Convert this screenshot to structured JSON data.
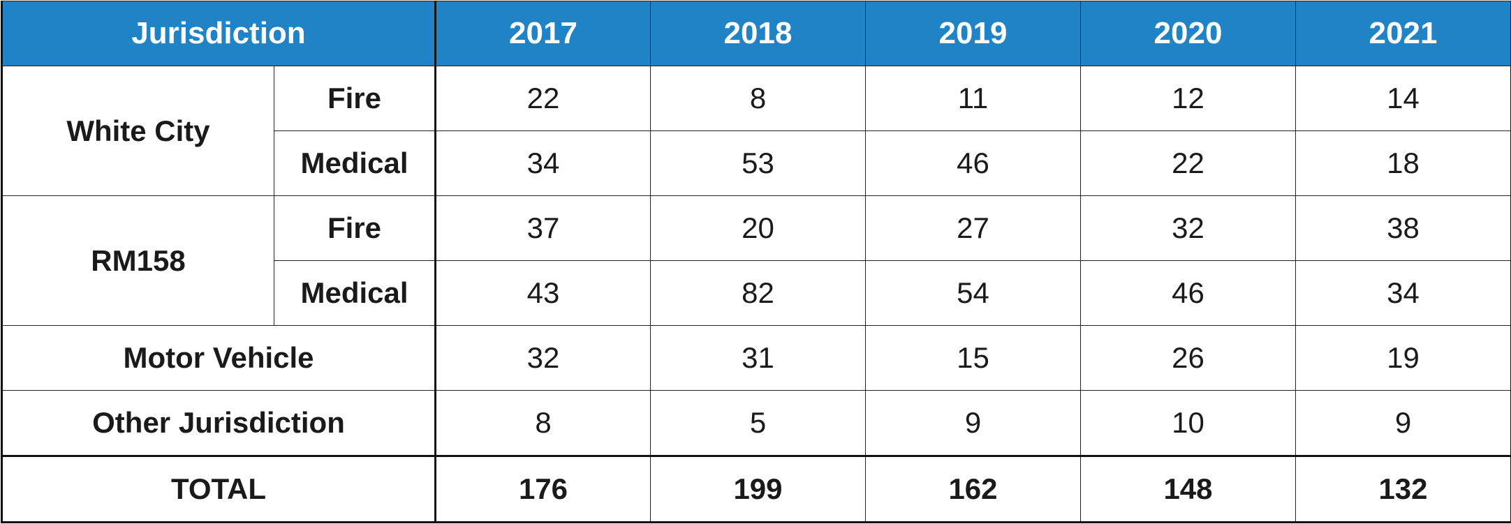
{
  "chart_data": {
    "type": "table",
    "header": {
      "first": "Jurisdiction",
      "years": [
        "2017",
        "2018",
        "2019",
        "2020",
        "2021"
      ]
    },
    "groups": [
      {
        "name": "White City",
        "rows": [
          {
            "label": "Fire",
            "values": [
              "22",
              "8",
              "11",
              "12",
              "14"
            ]
          },
          {
            "label": "Medical",
            "values": [
              "34",
              "53",
              "46",
              "22",
              "18"
            ]
          }
        ]
      },
      {
        "name": "RM158",
        "rows": [
          {
            "label": "Fire",
            "values": [
              "37",
              "20",
              "27",
              "32",
              "38"
            ]
          },
          {
            "label": "Medical",
            "values": [
              "43",
              "82",
              "54",
              "46",
              "34"
            ]
          }
        ]
      }
    ],
    "single_rows": [
      {
        "label": "Motor Vehicle",
        "values": [
          "32",
          "31",
          "15",
          "26",
          "19"
        ]
      },
      {
        "label": "Other Jurisdiction",
        "values": [
          "8",
          "5",
          "9",
          "10",
          "9"
        ]
      }
    ],
    "total": {
      "label": "TOTAL",
      "values": [
        "176",
        "199",
        "162",
        "148",
        "132"
      ]
    }
  },
  "colors": {
    "header_background": "#1f83c6",
    "header_text": "#ffffff",
    "border": "#222222"
  }
}
